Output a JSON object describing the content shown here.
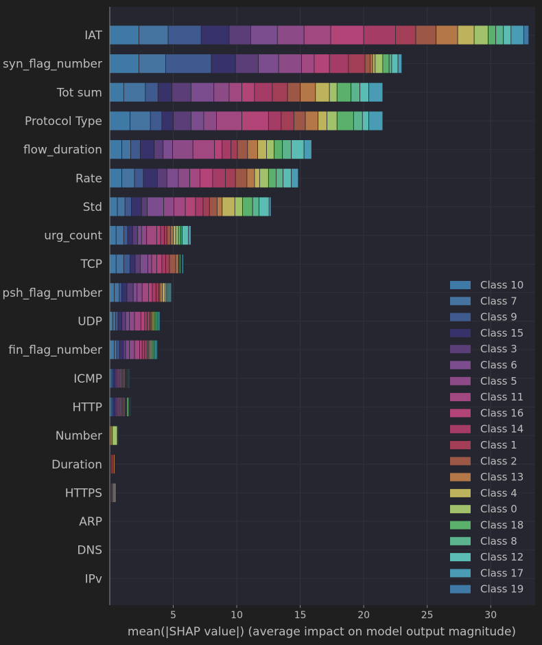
{
  "chart_data": {
    "type": "bar",
    "orientation": "horizontal-stacked",
    "title": "",
    "xlabel": "mean(|SHAP value|) (average impact on model output magnitude)",
    "ylabel": "",
    "xlim": [
      0,
      33.5
    ],
    "xticks": [
      5,
      10,
      15,
      20,
      25,
      30
    ],
    "grid": true,
    "legend_position": "lower-right",
    "classes": [
      "Class 10",
      "Class 7",
      "Class 9",
      "Class 15",
      "Class 3",
      "Class 6",
      "Class 5",
      "Class 11",
      "Class 16",
      "Class 14",
      "Class 1",
      "Class 2",
      "Class 13",
      "Class 4",
      "Class 0",
      "Class 18",
      "Class 8",
      "Class 12",
      "Class 17",
      "Class 19"
    ],
    "class_colors": [
      "#3f7aa7",
      "#4674a0",
      "#3e5a8f",
      "#37336a",
      "#5b3e78",
      "#7b4d8e",
      "#8c4a86",
      "#a0487f",
      "#b24478",
      "#a43c65",
      "#a23e55",
      "#9c5747",
      "#b37748",
      "#bdb35d",
      "#a1c26a",
      "#5bb06c",
      "#5bb48e",
      "#5bbcb3",
      "#4a9cb5",
      "#3f7aa7"
    ],
    "features": [
      "IAT",
      "syn_flag_number",
      "Tot sum",
      "Protocol Type",
      "flow_duration",
      "Rate",
      "Std",
      "urg_count",
      "TCP",
      "psh_flag_number",
      "UDP",
      "fin_flag_number",
      "ICMP",
      "HTTP",
      "Number",
      "Duration",
      "HTTPS",
      "ARP",
      "DNS",
      "IPv"
    ],
    "values": [
      [
        2.3,
        2.3,
        2.6,
        2.2,
        1.7,
        2.1,
        2.1,
        2.1,
        2.6,
        2.5,
        1.6,
        1.6,
        1.7,
        1.3,
        1.1,
        0.6,
        0.6,
        0.6,
        1.0,
        0.4
      ],
      [
        2.3,
        2.1,
        3.6,
        1.9,
        1.8,
        1.6,
        1.8,
        1.0,
        1.2,
        1.5,
        1.3,
        0.4,
        0.2,
        0.2,
        0.6,
        0.5,
        0.2,
        0.5,
        0.3,
        0.0
      ],
      [
        1.1,
        1.7,
        1.0,
        1.1,
        1.5,
        1.8,
        1.2,
        1.0,
        1.0,
        1.4,
        1.2,
        1.0,
        1.2,
        1.1,
        0.6,
        1.1,
        0.7,
        0.7,
        1.1,
        0.0
      ],
      [
        1.6,
        1.6,
        0.9,
        0.9,
        1.4,
        1.0,
        1.0,
        2.0,
        2.1,
        1.0,
        1.0,
        0.9,
        1.0,
        0.7,
        0.8,
        1.3,
        0.7,
        0.5,
        1.1,
        0.0
      ],
      [
        0.95,
        0.7,
        0.75,
        1.1,
        0.7,
        0.75,
        1.6,
        1.7,
        0.6,
        0.7,
        0.5,
        0.8,
        0.8,
        0.7,
        0.6,
        0.65,
        0.7,
        1.0,
        0.6,
        0.0
      ],
      [
        0.95,
        1.0,
        0.7,
        1.1,
        0.75,
        0.9,
        0.9,
        0.8,
        1.0,
        1.0,
        0.8,
        0.9,
        0.6,
        0.4,
        0.7,
        0.6,
        0.55,
        0.65,
        0.55,
        0.0
      ],
      [
        0.6,
        0.6,
        0.5,
        0.8,
        0.45,
        1.3,
        0.8,
        0.9,
        0.8,
        0.6,
        0.5,
        0.6,
        0.4,
        1.0,
        0.6,
        0.8,
        0.5,
        0.8,
        0.15,
        0.0
      ],
      [
        0.5,
        0.6,
        0.3,
        0.4,
        0.4,
        0.3,
        0.4,
        0.8,
        0.3,
        0.3,
        0.2,
        0.3,
        0.2,
        0.2,
        0.2,
        0.2,
        0.1,
        0.5,
        0.2,
        0.0
      ],
      [
        0.5,
        0.6,
        0.5,
        0.4,
        0.4,
        0.6,
        0.3,
        0.4,
        0.4,
        0.3,
        0.3,
        0.5,
        0.2,
        0.05,
        0.05,
        0.1,
        0.05,
        0.05,
        0.1,
        0.0
      ],
      [
        0.35,
        0.4,
        0.2,
        0.4,
        0.5,
        0.3,
        0.4,
        0.5,
        0.3,
        0.3,
        0.2,
        0.1,
        0.2,
        0.2,
        0.1,
        0.1,
        0.1,
        0.1,
        0.1,
        0.0
      ],
      [
        0.25,
        0.2,
        0.2,
        0.3,
        0.3,
        0.3,
        0.4,
        0.5,
        0.3,
        0.2,
        0.2,
        0.1,
        0.1,
        0.1,
        0.1,
        0.1,
        0.1,
        0.1,
        0.1,
        0.0
      ],
      [
        0.35,
        0.2,
        0.2,
        0.3,
        0.2,
        0.3,
        0.4,
        0.4,
        0.2,
        0.2,
        0.2,
        0.1,
        0.1,
        0.1,
        0.1,
        0.1,
        0.1,
        0.1,
        0.1,
        0.0
      ],
      [
        0.1,
        0.1,
        0.1,
        0.1,
        0.1,
        0.1,
        0.1,
        0.1,
        0.1,
        0.1,
        0.1,
        0.1,
        0.05,
        0.05,
        0.05,
        0.05,
        0.05,
        0.05,
        0.05,
        0.0
      ],
      [
        0.1,
        0.1,
        0.1,
        0.1,
        0.1,
        0.1,
        0.1,
        0.1,
        0.1,
        0.1,
        0.1,
        0.1,
        0.05,
        0.05,
        0.05,
        0.15,
        0.05,
        0.05,
        0.05,
        0.0
      ],
      [
        0.0,
        0.0,
        0.0,
        0.0,
        0.0,
        0.0,
        0.0,
        0.0,
        0.0,
        0.0,
        0.0,
        0.0,
        0.1,
        0.1,
        0.4,
        0.05,
        0.05,
        0.0,
        0.0,
        0.0
      ],
      [
        0.0,
        0.0,
        0.0,
        0.0,
        0.0,
        0.0,
        0.0,
        0.0,
        0.05,
        0.05,
        0.1,
        0.1,
        0.1,
        0.0,
        0.0,
        0.0,
        0.0,
        0.0,
        0.0,
        0.0
      ],
      [
        0.0,
        0.0,
        0.0,
        0.0,
        0.0,
        0.0,
        0.0,
        0.0,
        0.05,
        0.05,
        0.05,
        0.1,
        0.1,
        0.1,
        0.05,
        0.0,
        0.0,
        0.0,
        0.0,
        0.0
      ],
      [
        0.0,
        0.0,
        0.0,
        0.0,
        0.0,
        0.0,
        0.0,
        0.0,
        0.0,
        0.0,
        0.0,
        0.0,
        0.0,
        0.0,
        0.0,
        0.0,
        0.0,
        0.0,
        0.0,
        0.0
      ],
      [
        0.0,
        0.0,
        0.0,
        0.0,
        0.0,
        0.0,
        0.0,
        0.0,
        0.0,
        0.0,
        0.0,
        0.0,
        0.0,
        0.0,
        0.0,
        0.0,
        0.0,
        0.0,
        0.0,
        0.0
      ],
      [
        0.0,
        0.0,
        0.0,
        0.0,
        0.0,
        0.0,
        0.0,
        0.0,
        0.0,
        0.0,
        0.0,
        0.0,
        0.0,
        0.0,
        0.0,
        0.0,
        0.0,
        0.0,
        0.0,
        0.0
      ]
    ]
  }
}
